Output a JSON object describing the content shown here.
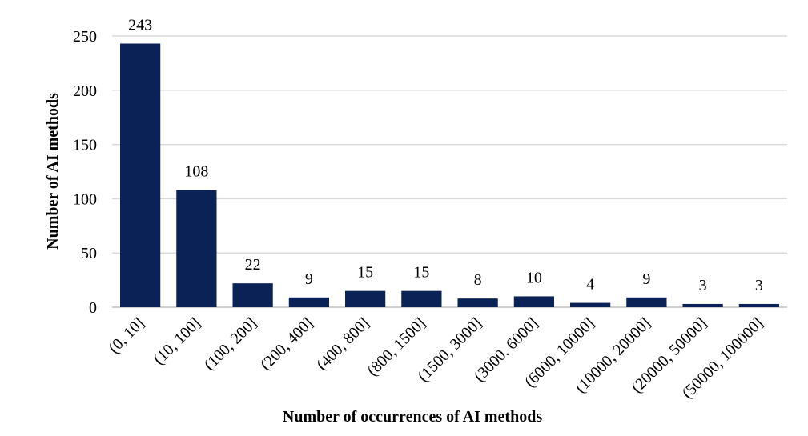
{
  "chart_data": {
    "type": "bar",
    "title": "",
    "xlabel": "Number of occurrences of AI methods",
    "ylabel": "Number of AI methods",
    "categories": [
      "(0, 10]",
      "(10, 100]",
      "(100, 200]",
      "(200, 400]",
      "(400, 800]",
      "(800, 1500]",
      "(1500, 3000]",
      "(3000, 6000]",
      "(6000, 10000]",
      "(10000, 20000]",
      "(20000, 50000]",
      "(50000, 100000]"
    ],
    "values": [
      243,
      108,
      22,
      9,
      15,
      15,
      8,
      10,
      4,
      9,
      3,
      3
    ],
    "data_labels": [
      "243",
      "108",
      "22",
      "9",
      "15",
      "15",
      "8",
      "10",
      "4",
      "9",
      "3",
      "3"
    ],
    "yticks": [
      0,
      50,
      100,
      150,
      200,
      250
    ],
    "ylim": [
      0,
      250
    ],
    "grid": true,
    "legend": "none",
    "bar_color": "#0b2257"
  }
}
